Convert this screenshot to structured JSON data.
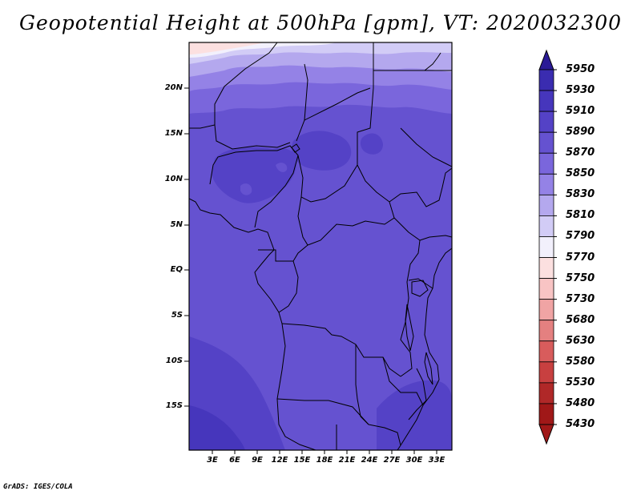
{
  "title": "Geopotential Height at 500hPa [gpm], VT: 2020032300",
  "credit": "GrADS: IGES/COLA",
  "chart_data": {
    "type": "heatmap",
    "variable": "Geopotential Height at 500hPa",
    "units": "gpm",
    "valid_time": "2020032300",
    "lon_range": [
      0,
      35
    ],
    "lat_range": [
      -20,
      25
    ],
    "x_ticks": [
      "3E",
      "6E",
      "9E",
      "12E",
      "15E",
      "18E",
      "21E",
      "24E",
      "27E",
      "30E",
      "33E"
    ],
    "y_ticks": [
      "20N",
      "15N",
      "10N",
      "5N",
      "EQ",
      "5S",
      "10S",
      "15S"
    ],
    "colorbar_levels": [
      "5950",
      "5930",
      "5910",
      "5890",
      "5870",
      "5850",
      "5830",
      "5810",
      "5790",
      "5770",
      "5750",
      "5730",
      "5680",
      "5630",
      "5580",
      "5530",
      "5480",
      "5430"
    ],
    "colorbar_colors": [
      "#2a1a96",
      "#3a2cb0",
      "#4636bc",
      "#5442c6",
      "#6552d0",
      "#7a66dc",
      "#9482e6",
      "#b4a8ee",
      "#d2ccf6",
      "#f2f0fc",
      "#fce0e0",
      "#f8c4c4",
      "#f0a4a4",
      "#e48080",
      "#d85c5c",
      "#c84040",
      "#b02828",
      "#a01818"
    ],
    "field": [
      {
        "level": "5770-5790",
        "region": "far north-west corner near 0E-8E 24N-25N"
      },
      {
        "level": "5810-5830",
        "region": "northern edge 22N-25N"
      },
      {
        "level": "5830-5850",
        "region": "21N-23N band"
      },
      {
        "level": "5850-5870",
        "region": "17N-21N band"
      },
      {
        "level": "5870-5890",
        "region": "most of domain 10S-17N"
      },
      {
        "level": "5890-5910",
        "region": "patches over Nigeria/Chad 9N-14N and southern Africa south of 10S"
      },
      {
        "level": "5910-5930",
        "region": "south-west corner 16S-20S"
      }
    ]
  }
}
